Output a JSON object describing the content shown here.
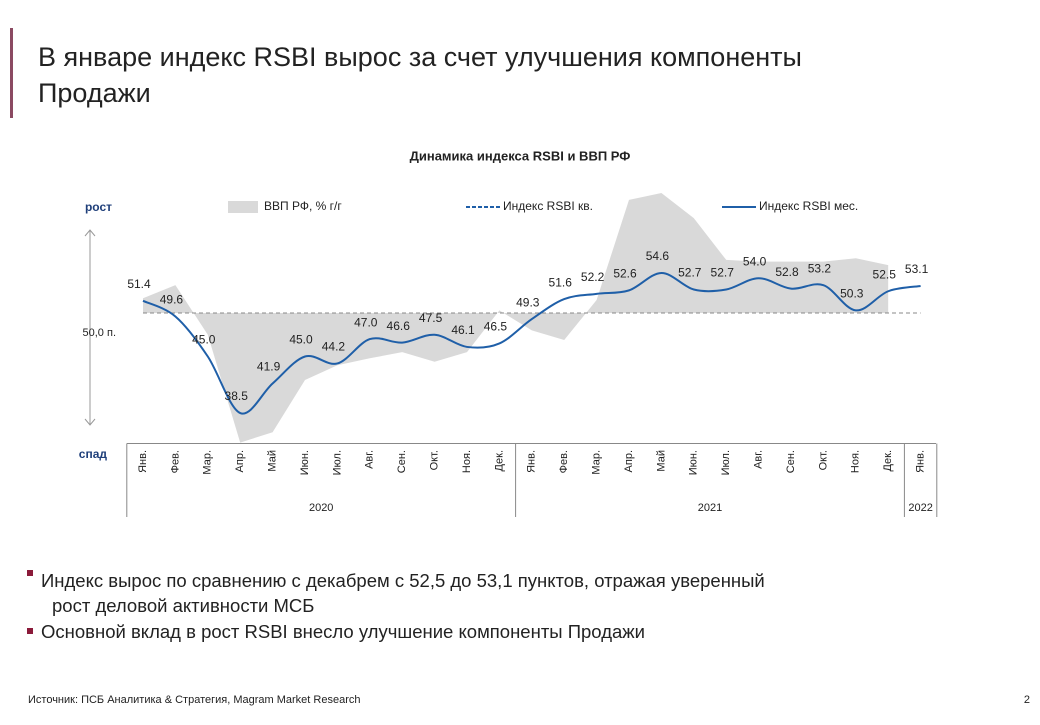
{
  "header": {
    "title": [
      "В январе индекс RSBI вырос за счет улучшения компоненты",
      "Продажи"
    ]
  },
  "chart_data": {
    "type": "line",
    "title": "Динамика индекса RSBI и ВВП РФ",
    "y_top_label": "рост",
    "y_bottom_label": "спад",
    "reference": {
      "value": 50,
      "label": "50,0 п."
    },
    "categories": [
      "Янв.",
      "Фев.",
      "Мар.",
      "Апр.",
      "Май",
      "Июн.",
      "Июл.",
      "Авг.",
      "Сен.",
      "Окт.",
      "Ноя.",
      "Дек.",
      "Янв.",
      "Фев.",
      "Мар.",
      "Апр.",
      "Май",
      "Июн.",
      "Июл.",
      "Авг.",
      "Сен.",
      "Окт.",
      "Ноя.",
      "Дек.",
      "Янв."
    ],
    "year_groups": [
      "2020",
      "2021",
      "2022"
    ],
    "ylim": [
      35,
      65
    ],
    "series": [
      {
        "name": "ВВП РФ, % г/г",
        "kind": "area",
        "color": "#d9d9d9",
        "values": [
          51.7,
          53.2,
          47.5,
          35.1,
          36.3,
          42.3,
          44.0,
          44.8,
          45.5,
          44.4,
          45.5,
          50.3,
          48.0,
          46.9,
          51.5,
          63.0,
          63.8,
          60.9,
          56.1,
          55.9,
          55.9,
          55.9,
          56.3,
          55.5,
          null
        ]
      },
      {
        "name": "Индекс RSBI кв.",
        "kind": "dashed",
        "color": "#1f5fa8"
      },
      {
        "name": "Индекс RSBI мес.",
        "kind": "line",
        "color": "#1f5fa8",
        "values": [
          51.4,
          49.6,
          45.0,
          38.5,
          41.9,
          45.0,
          44.2,
          47.0,
          46.6,
          47.5,
          46.1,
          46.5,
          49.3,
          51.6,
          52.2,
          52.6,
          54.6,
          52.7,
          52.7,
          54.0,
          52.8,
          53.2,
          50.3,
          52.5,
          53.1
        ],
        "value_labels": [
          "51.4",
          "49.6",
          "45.0",
          "38.5",
          "41.9",
          "45.0",
          "44.2",
          "47.0",
          "46.6",
          "47.5",
          "46.1",
          "46.5",
          "49.3",
          "51.6",
          "52.2",
          "52.6",
          "54.6",
          "52.7",
          "52.7",
          "54.0",
          "52.8",
          "53.2",
          "50.3",
          "52.5",
          "53.1"
        ]
      }
    ]
  },
  "bullets": [
    "Индекс вырос по сравнению с декабрем с 52,5 до 53,1 пунктов, отражая уверенный",
    "рост деловой активности МСБ",
    "Основной вклад в рост RSBI внесло улучшение компоненты Продажи"
  ],
  "source": "Источник: ПСБ Аналитика & Стратегия, Magram Market Research",
  "page_number": "2"
}
